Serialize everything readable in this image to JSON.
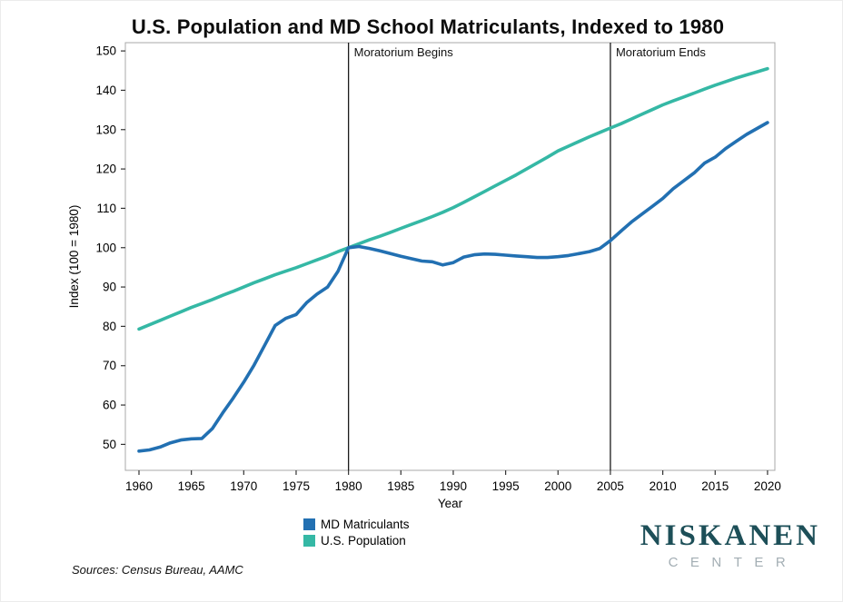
{
  "chart_data": {
    "type": "line",
    "title": "U.S. Population and MD School Matriculants, Indexed to 1980",
    "xlabel": "Year",
    "ylabel": "Index (100 = 1980)",
    "xlim": [
      1958.7,
      2020.7
    ],
    "ylim": [
      43.4,
      152.1
    ],
    "xticks": [
      1960,
      1965,
      1970,
      1975,
      1980,
      1985,
      1990,
      1995,
      2000,
      2005,
      2010,
      2015,
      2020
    ],
    "yticks": [
      50,
      60,
      70,
      80,
      90,
      100,
      110,
      120,
      130,
      140,
      150
    ],
    "grid": false,
    "legend_position": "bottom-center",
    "vlines": [
      {
        "x": 1980,
        "label": "Moratorium Begins"
      },
      {
        "x": 2005,
        "label": "Moratorium Ends"
      }
    ],
    "x": [
      1960,
      1961,
      1962,
      1963,
      1964,
      1965,
      1966,
      1967,
      1968,
      1969,
      1970,
      1971,
      1972,
      1973,
      1974,
      1975,
      1976,
      1977,
      1978,
      1979,
      1980,
      1981,
      1982,
      1983,
      1984,
      1985,
      1986,
      1987,
      1988,
      1989,
      1990,
      1991,
      1992,
      1993,
      1994,
      1995,
      1996,
      1997,
      1998,
      1999,
      2000,
      2001,
      2002,
      2003,
      2004,
      2005,
      2006,
      2007,
      2008,
      2009,
      2010,
      2011,
      2012,
      2013,
      2014,
      2015,
      2016,
      2017,
      2018,
      2019,
      2020
    ],
    "series": [
      {
        "name": "MD Matriculants",
        "color": "#2270b2",
        "values": [
          48.3,
          48.6,
          49.3,
          50.4,
          51.1,
          51.4,
          51.5,
          54.0,
          58.0,
          61.8,
          65.8,
          70.2,
          75.2,
          80.2,
          82.0,
          83.0,
          86.0,
          88.2,
          90.0,
          94.0,
          100.0,
          100.3,
          99.8,
          99.2,
          98.5,
          97.8,
          97.2,
          96.6,
          96.4,
          95.6,
          96.2,
          97.6,
          98.2,
          98.4,
          98.3,
          98.1,
          97.9,
          97.7,
          97.5,
          97.5,
          97.7,
          98.0,
          98.5,
          99.0,
          99.8,
          101.8,
          104.2,
          106.5,
          108.5,
          110.5,
          112.5,
          115.0,
          117.0,
          119.0,
          121.5,
          123.0,
          125.2,
          127.0,
          128.8,
          130.3,
          131.8
        ]
      },
      {
        "name": "U.S. Population",
        "color": "#35b8a5",
        "values": [
          79.3,
          80.4,
          81.5,
          82.6,
          83.7,
          84.8,
          85.8,
          86.8,
          87.9,
          88.9,
          90.0,
          91.1,
          92.1,
          93.1,
          94.0,
          94.9,
          95.9,
          96.9,
          97.9,
          99.0,
          100.0,
          101.0,
          102.0,
          102.9,
          103.9,
          104.9,
          105.9,
          106.9,
          107.9,
          109.0,
          110.2,
          111.5,
          112.9,
          114.3,
          115.7,
          117.1,
          118.5,
          120.0,
          121.5,
          123.0,
          124.6,
          125.8,
          127.0,
          128.2,
          129.3,
          130.4,
          131.5,
          132.7,
          133.9,
          135.1,
          136.3,
          137.3,
          138.3,
          139.3,
          140.3,
          141.3,
          142.2,
          143.1,
          143.9,
          144.7,
          145.5
        ]
      }
    ]
  },
  "footer": {
    "sources": "Sources: Census Bureau, AAMC"
  },
  "logo": {
    "line1": "NISKANEN",
    "line2": "CENTER"
  },
  "colors": {
    "md_matriculants": "#2270b2",
    "us_population": "#35b8a5",
    "vline": "#1a1a1a",
    "spine": "#a8a8a8",
    "tick": "#333333",
    "label": "#000000",
    "logo_primary": "#1d4f58",
    "logo_secondary": "#a3aeb4"
  }
}
